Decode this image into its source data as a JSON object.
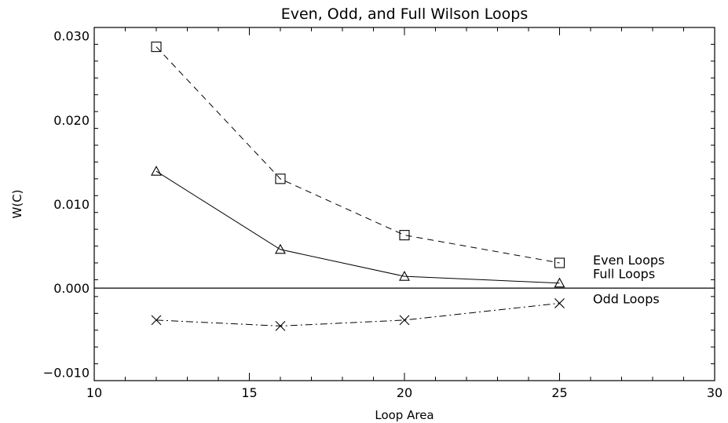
{
  "chart_data": {
    "type": "line",
    "title": "Even, Odd, and Full Wilson Loops",
    "xlabel": "Loop Area",
    "ylabel": "W(C)",
    "xlim": [
      10,
      30
    ],
    "ylim": [
      -0.011,
      0.031
    ],
    "xticks": [
      10,
      15,
      20,
      25,
      30
    ],
    "xtick_labels": [
      "10",
      "15",
      "20",
      "25",
      "30"
    ],
    "yticks": [
      -0.01,
      0.0,
      0.01,
      0.02,
      0.03
    ],
    "ytick_labels": [
      "−0.010",
      "0.000",
      "0.010",
      "0.020",
      "0.030"
    ],
    "grid": false,
    "reference_line_y": 0,
    "series": [
      {
        "name": "Even Loops",
        "marker": "square",
        "line_style": "dashed",
        "x": [
          12,
          16,
          20,
          25
        ],
        "y": [
          0.0287,
          0.013,
          0.0063,
          0.003
        ]
      },
      {
        "name": "Full Loops",
        "marker": "triangle",
        "line_style": "solid",
        "x": [
          12,
          16,
          20,
          25
        ],
        "y": [
          0.0139,
          0.0046,
          0.0014,
          0.0006
        ]
      },
      {
        "name": "Odd Loops",
        "marker": "x",
        "line_style": "dashdot",
        "x": [
          12,
          16,
          20,
          25
        ],
        "y": [
          -0.0038,
          -0.0045,
          -0.0038,
          -0.0018
        ]
      }
    ]
  }
}
